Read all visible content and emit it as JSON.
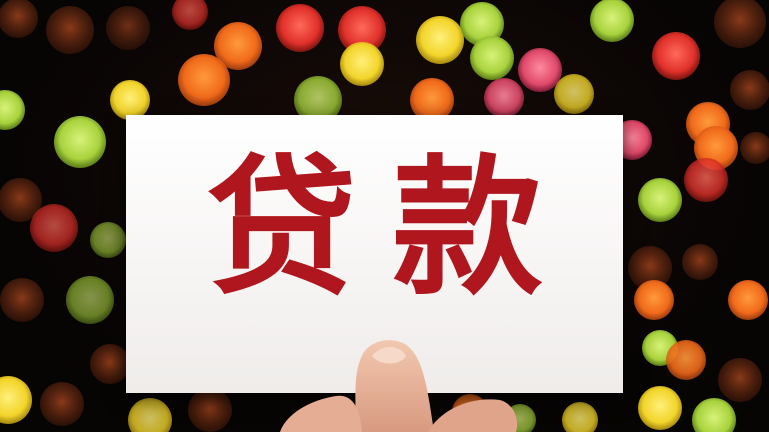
{
  "card": {
    "text": "贷款"
  },
  "colors": {
    "card_background": "#ffffff",
    "text_red": "#b0161d",
    "background": "#0a0606"
  },
  "icons": {
    "hand": "hand-holding-card-icon"
  }
}
